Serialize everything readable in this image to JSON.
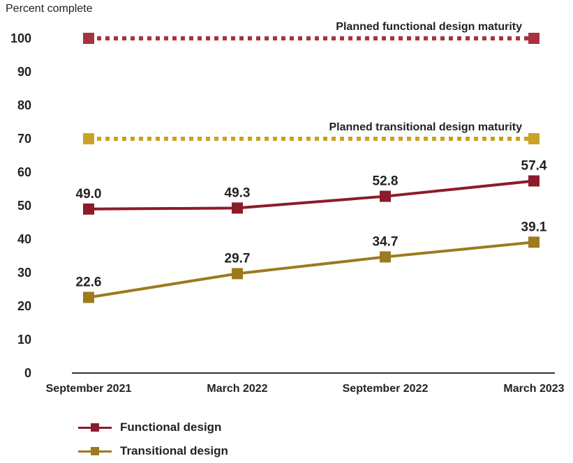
{
  "chart_data": {
    "type": "line",
    "ylabel": "Percent complete",
    "xlabel": "",
    "ylim": [
      0,
      100
    ],
    "yticks": [
      0,
      10,
      20,
      30,
      40,
      50,
      60,
      70,
      80,
      90,
      100
    ],
    "categories": [
      "September 2021",
      "March 2022",
      "September 2022",
      "March 2023"
    ],
    "series": [
      {
        "name": "Functional design",
        "values": [
          49.0,
          49.3,
          52.8,
          57.4
        ],
        "labels": [
          "49.0",
          "49.3",
          "52.8",
          "57.4"
        ],
        "color": "#8b1c2b"
      },
      {
        "name": "Transitional design",
        "values": [
          22.6,
          29.7,
          34.7,
          39.1
        ],
        "labels": [
          "22.6",
          "29.7",
          "34.7",
          "39.1"
        ],
        "color": "#9c7a1e"
      }
    ],
    "reference_lines": [
      {
        "label": "Planned functional design maturity",
        "value": 100,
        "color": "#a8323e",
        "style": "dotted"
      },
      {
        "label": "Planned transitional design maturity",
        "value": 70,
        "color": "#c9a227",
        "style": "dotted"
      }
    ],
    "grid": false,
    "legend_position": "bottom-left"
  }
}
